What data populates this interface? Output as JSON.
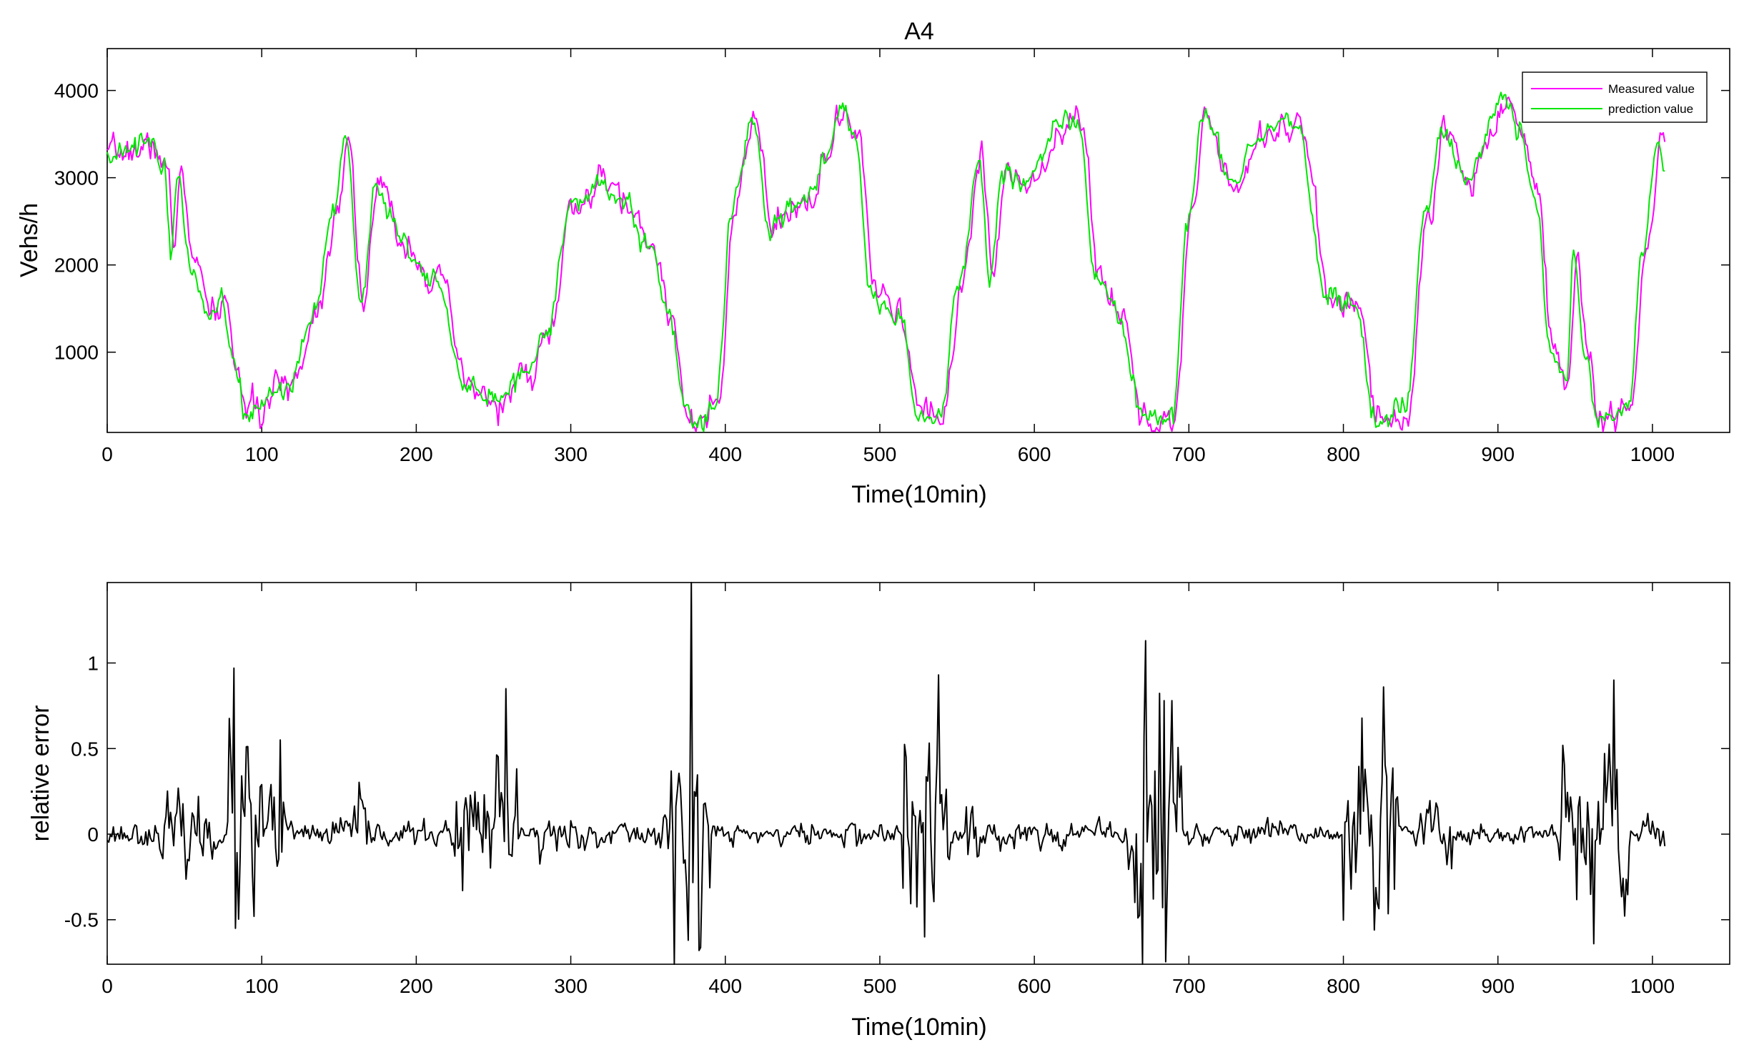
{
  "chart_data": [
    {
      "type": "line",
      "title": "A4",
      "xlabel": "Time(10min)",
      "ylabel": "Vehs/h",
      "xlim": [
        0,
        1050
      ],
      "ylim": [
        80,
        4480
      ],
      "xticks": [
        0,
        100,
        200,
        300,
        400,
        500,
        600,
        700,
        800,
        900,
        1000
      ],
      "xtick_labels": [
        "0",
        "100",
        "200",
        "300",
        "400",
        "500",
        "600",
        "700",
        "800",
        "900",
        "1000"
      ],
      "yticks": [
        1000,
        2000,
        3000,
        4000
      ],
      "ytick_labels": [
        "1000",
        "2000",
        "3000",
        "4000"
      ],
      "grid": false,
      "legend_position": "top-right",
      "x_step": 1,
      "seed": 7,
      "noise": 110,
      "noise_smoothing": 0.55,
      "anchors": [
        [
          0,
          3200
        ],
        [
          10,
          3300
        ],
        [
          30,
          3350
        ],
        [
          38,
          3100
        ],
        [
          42,
          2150
        ],
        [
          47,
          3150
        ],
        [
          55,
          2000
        ],
        [
          68,
          1400
        ],
        [
          75,
          1600
        ],
        [
          82,
          900
        ],
        [
          90,
          320
        ],
        [
          100,
          320
        ],
        [
          110,
          600
        ],
        [
          120,
          700
        ],
        [
          135,
          1500
        ],
        [
          148,
          2700
        ],
        [
          155,
          3450
        ],
        [
          165,
          1600
        ],
        [
          175,
          2900
        ],
        [
          190,
          2300
        ],
        [
          215,
          1750
        ],
        [
          232,
          600
        ],
        [
          250,
          400
        ],
        [
          270,
          700
        ],
        [
          285,
          1200
        ],
        [
          300,
          2600
        ],
        [
          320,
          2950
        ],
        [
          335,
          2700
        ],
        [
          352,
          2200
        ],
        [
          365,
          1400
        ],
        [
          375,
          300
        ],
        [
          385,
          180
        ],
        [
          395,
          400
        ],
        [
          405,
          2600
        ],
        [
          418,
          3650
        ],
        [
          430,
          2400
        ],
        [
          450,
          2700
        ],
        [
          465,
          3200
        ],
        [
          475,
          3700
        ],
        [
          485,
          3500
        ],
        [
          495,
          1700
        ],
        [
          515,
          1350
        ],
        [
          525,
          250
        ],
        [
          540,
          250
        ],
        [
          552,
          1800
        ],
        [
          565,
          3250
        ],
        [
          572,
          1900
        ],
        [
          580,
          3000
        ],
        [
          600,
          3000
        ],
        [
          615,
          3600
        ],
        [
          622,
          3750
        ],
        [
          630,
          3600
        ],
        [
          640,
          1900
        ],
        [
          655,
          1500
        ],
        [
          668,
          400
        ],
        [
          675,
          180
        ],
        [
          690,
          300
        ],
        [
          700,
          2500
        ],
        [
          710,
          3650
        ],
        [
          730,
          2950
        ],
        [
          745,
          3500
        ],
        [
          770,
          3650
        ],
        [
          790,
          1700
        ],
        [
          810,
          1500
        ],
        [
          820,
          250
        ],
        [
          840,
          250
        ],
        [
          855,
          2700
        ],
        [
          865,
          3500
        ],
        [
          880,
          3000
        ],
        [
          905,
          3900
        ],
        [
          915,
          3500
        ],
        [
          925,
          2800
        ],
        [
          935,
          1000
        ],
        [
          945,
          750
        ],
        [
          950,
          2050
        ],
        [
          958,
          900
        ],
        [
          965,
          250
        ],
        [
          985,
          300
        ],
        [
          995,
          2200
        ],
        [
          1005,
          3400
        ],
        [
          1008,
          3300
        ]
      ],
      "series": [
        {
          "name": "Measured value",
          "color": "#ff00ff",
          "offset": -1,
          "noise_scale": 1.0
        },
        {
          "name": "prediction value",
          "color": "#00e600",
          "offset": 1,
          "noise_scale": 0.8
        }
      ]
    },
    {
      "type": "line",
      "title": "",
      "xlabel": "Time(10min)",
      "ylabel": "relative error",
      "xlim": [
        0,
        1050
      ],
      "ylim": [
        -0.76,
        1.47
      ],
      "xticks": [
        0,
        100,
        200,
        300,
        400,
        500,
        600,
        700,
        800,
        900,
        1000
      ],
      "xtick_labels": [
        "0",
        "100",
        "200",
        "300",
        "400",
        "500",
        "600",
        "700",
        "800",
        "900",
        "1000"
      ],
      "yticks": [
        -0.5,
        0,
        0.5,
        1
      ],
      "ytick_labels": [
        "-0.5",
        "0",
        "0.5",
        "1"
      ],
      "grid": false,
      "x_step": 1,
      "seed": 23,
      "base_noise": 0.05,
      "bursts": [
        [
          35,
          70,
          0.15
        ],
        [
          78,
          100,
          0.4
        ],
        [
          105,
          115,
          0.25
        ],
        [
          150,
          170,
          0.15
        ],
        [
          225,
          265,
          0.3
        ],
        [
          280,
          300,
          0.12
        ],
        [
          360,
          390,
          0.4
        ],
        [
          515,
          545,
          0.4
        ],
        [
          555,
          565,
          0.2
        ],
        [
          660,
          695,
          0.5
        ],
        [
          800,
          835,
          0.45
        ],
        [
          850,
          870,
          0.15
        ],
        [
          940,
          985,
          0.45
        ]
      ],
      "spikes": [
        [
          82,
          0.97
        ],
        [
          83,
          -0.55
        ],
        [
          95,
          -0.48
        ],
        [
          112,
          0.55
        ],
        [
          230,
          -0.33
        ],
        [
          258,
          0.85
        ],
        [
          378,
          1.47
        ],
        [
          376,
          -0.62
        ],
        [
          383,
          -0.68
        ],
        [
          538,
          0.93
        ],
        [
          529,
          -0.6
        ],
        [
          672,
          1.13
        ],
        [
          670,
          -0.76
        ],
        [
          684,
          0.78
        ],
        [
          689,
          0.78
        ],
        [
          826,
          0.86
        ],
        [
          820,
          -0.56
        ],
        [
          975,
          0.9
        ],
        [
          962,
          -0.64
        ]
      ],
      "x_end": 1008,
      "series": [
        {
          "name": "",
          "color": "#000000"
        }
      ]
    }
  ]
}
